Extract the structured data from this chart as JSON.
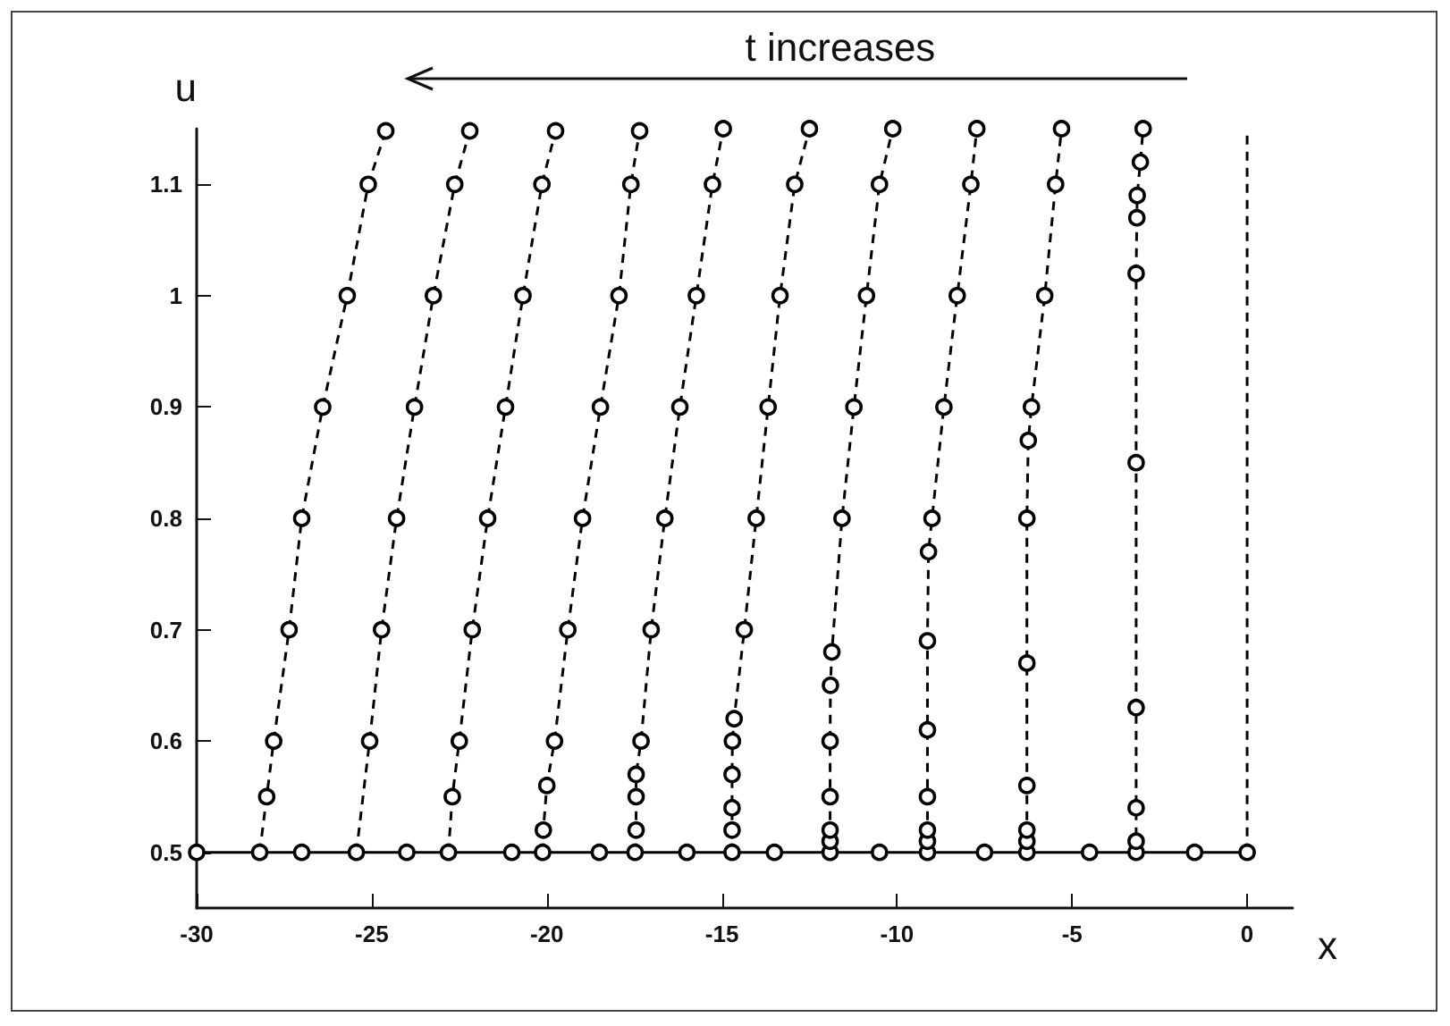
{
  "chart_data": {
    "type": "line",
    "xlabel": "x",
    "ylabel": "u",
    "annotations": [
      "t increases"
    ],
    "xlim": [
      -30,
      1.3
    ],
    "xticks": [
      -30,
      -25,
      -20,
      -15,
      -10,
      -5,
      0
    ],
    "ylim": [
      0.45,
      1.15
    ],
    "yticks": [
      0.5,
      0.6,
      0.7,
      0.8,
      0.9,
      1.0,
      1.1
    ],
    "marker": "circle",
    "line_style": "dashed",
    "series": [
      {
        "color": "#000000",
        "line_style": "solid",
        "x": [
          -30,
          -27,
          -24,
          -21,
          -18.5,
          -16,
          -13.5,
          -10.5,
          -7.5,
          -4.5,
          -1.5,
          0
        ],
        "values": [
          0.5,
          0.5,
          0.5,
          0.5,
          0.5,
          0.5,
          0.5,
          0.5,
          0.5,
          0.5,
          0.5,
          0.5
        ]
      },
      {
        "color": "#000000",
        "marker": "none",
        "x": [
          0,
          0
        ],
        "values": [
          0.5,
          1.15
        ]
      },
      {
        "color": "#000000",
        "x": [
          -28.2,
          -28.0,
          -27.8,
          -27.36,
          -27.0,
          -26.4,
          -25.7,
          -25.1,
          -24.6
        ],
        "values": [
          0.5,
          0.55,
          0.6,
          0.7,
          0.8,
          0.9,
          1.0,
          1.1,
          1.148
        ]
      },
      {
        "color": "#000000",
        "x": [
          -25.44,
          -25.06,
          -24.72,
          -24.29,
          -23.78,
          -23.24,
          -22.63,
          -22.2
        ],
        "values": [
          0.5,
          0.6,
          0.7,
          0.8,
          0.9,
          1.0,
          1.1,
          1.148
        ]
      },
      {
        "color": "#000000",
        "x": [
          -22.81,
          -22.7,
          -22.5,
          -22.13,
          -21.69,
          -21.18,
          -20.68,
          -20.14,
          -19.75
        ],
        "values": [
          0.5,
          0.55,
          0.6,
          0.7,
          0.8,
          0.9,
          1.0,
          1.1,
          1.148
        ]
      },
      {
        "color": "#000000",
        "x": [
          -20.12,
          -20.1,
          -20.0,
          -19.78,
          -19.4,
          -18.98,
          -18.47,
          -17.94,
          -17.6,
          -17.35
        ],
        "values": [
          0.5,
          0.52,
          0.56,
          0.6,
          0.7,
          0.8,
          0.9,
          1.0,
          1.1,
          1.148
        ]
      },
      {
        "color": "#000000",
        "x": [
          -17.48,
          -17.45,
          -17.45,
          -17.45,
          -17.31,
          -17.02,
          -16.63,
          -16.2,
          -15.73,
          -15.27,
          -14.96
        ],
        "values": [
          0.5,
          0.52,
          0.55,
          0.57,
          0.6,
          0.7,
          0.8,
          0.9,
          1.0,
          1.1,
          1.15
        ]
      },
      {
        "color": "#000000",
        "x": [
          -14.71,
          -14.71,
          -14.71,
          -14.71,
          -14.7,
          -14.65,
          -14.36,
          -14.02,
          -13.68,
          -13.34,
          -12.92,
          -12.5
        ],
        "values": [
          0.5,
          0.52,
          0.54,
          0.57,
          0.6,
          0.62,
          0.7,
          0.8,
          0.9,
          1.0,
          1.1,
          1.15
        ]
      },
      {
        "color": "#000000",
        "x": [
          -11.91,
          -11.91,
          -11.91,
          -11.91,
          -11.91,
          -11.9,
          -11.86,
          -11.57,
          -11.23,
          -10.87,
          -10.5,
          -10.12
        ],
        "values": [
          0.5,
          0.51,
          0.52,
          0.55,
          0.6,
          0.65,
          0.68,
          0.8,
          0.9,
          1.0,
          1.1,
          1.15
        ]
      },
      {
        "color": "#000000",
        "x": [
          -9.13,
          -9.13,
          -9.13,
          -9.13,
          -9.13,
          -9.13,
          -9.1,
          -9.0,
          -8.66,
          -8.28,
          -7.89,
          -7.72
        ],
        "values": [
          0.5,
          0.51,
          0.52,
          0.55,
          0.61,
          0.69,
          0.77,
          0.8,
          0.9,
          1.0,
          1.1,
          1.15
        ]
      },
      {
        "color": "#000000",
        "x": [
          -6.29,
          -6.29,
          -6.29,
          -6.29,
          -6.29,
          -6.29,
          -6.25,
          -6.16,
          -5.78,
          -5.47,
          -5.3
        ],
        "values": [
          0.5,
          0.51,
          0.52,
          0.56,
          0.67,
          0.8,
          0.87,
          0.9,
          1.0,
          1.1,
          1.15
        ]
      },
      {
        "color": "#000000",
        "x": [
          -3.17,
          -3.17,
          -3.17,
          -3.17,
          -3.17,
          -3.17,
          -3.15,
          -3.14,
          -3.05,
          -2.97
        ],
        "values": [
          0.5,
          0.51,
          0.54,
          0.63,
          0.85,
          1.02,
          1.07,
          1.09,
          1.12,
          1.15
        ]
      }
    ]
  }
}
